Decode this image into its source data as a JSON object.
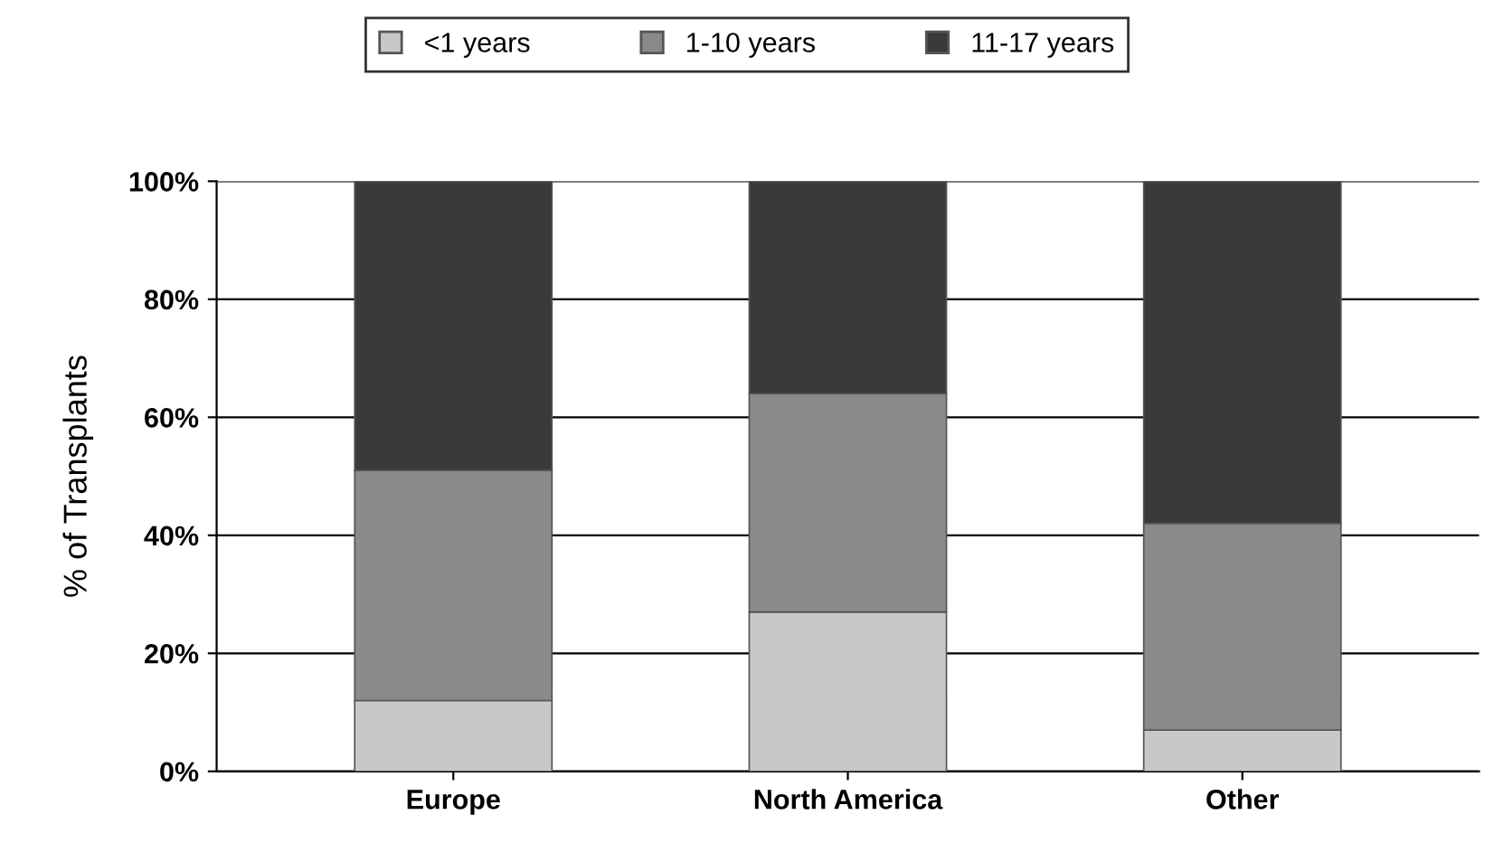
{
  "chart_data": {
    "type": "bar",
    "stacked": true,
    "ylabel": "% of Transplants",
    "categories": [
      "Europe",
      "North America",
      "Other"
    ],
    "series": [
      {
        "name": "<1 years",
        "color": "#c8c8c8",
        "values": [
          12,
          27,
          7
        ]
      },
      {
        "name": "1-10 years",
        "color": "#8a8a8a",
        "values": [
          39,
          37,
          35
        ]
      },
      {
        "name": "11-17 years",
        "color": "#3a3a3a",
        "values": [
          49,
          36,
          58
        ]
      }
    ],
    "ylim": [
      0,
      100
    ],
    "yticks": [
      {
        "value": 0,
        "label": "0%"
      },
      {
        "value": 20,
        "label": "20%"
      },
      {
        "value": 40,
        "label": "40%"
      },
      {
        "value": 60,
        "label": "60%"
      },
      {
        "value": 80,
        "label": "80%"
      },
      {
        "value": 100,
        "label": "100%"
      }
    ],
    "grid": "y",
    "legend": "top"
  }
}
